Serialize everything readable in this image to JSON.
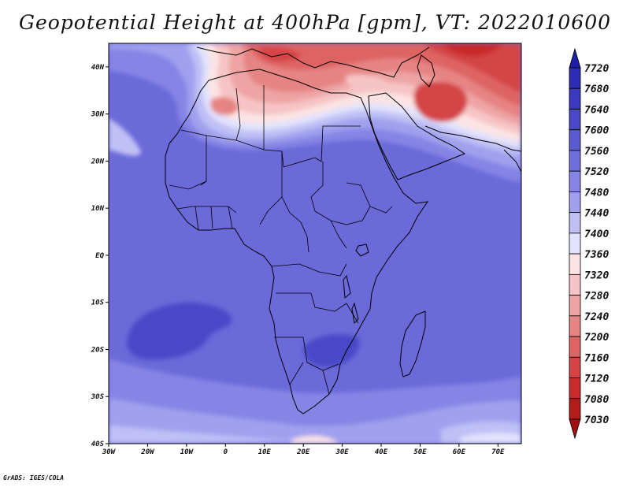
{
  "title": "Geopotential Height at 400hPa [gpm], VT: 2022010600",
  "credit": "GrADS: IGES/COLA",
  "map": {
    "variable": "Geopotential Height",
    "level": "400hPa",
    "units": "gpm",
    "valid_time": "2022010600",
    "lon_range": [
      -30,
      76
    ],
    "lat_range": [
      -40,
      45
    ],
    "lon_ticks": [
      {
        "value": -30,
        "label": "30W"
      },
      {
        "value": -20,
        "label": "20W"
      },
      {
        "value": -10,
        "label": "10W"
      },
      {
        "value": 0,
        "label": "0"
      },
      {
        "value": 10,
        "label": "10E"
      },
      {
        "value": 20,
        "label": "20E"
      },
      {
        "value": 30,
        "label": "30E"
      },
      {
        "value": 40,
        "label": "40E"
      },
      {
        "value": 50,
        "label": "50E"
      },
      {
        "value": 60,
        "label": "60E"
      },
      {
        "value": 70,
        "label": "70E"
      }
    ],
    "lat_ticks": [
      {
        "value": 40,
        "label": "40N"
      },
      {
        "value": 30,
        "label": "30N"
      },
      {
        "value": 20,
        "label": "20N"
      },
      {
        "value": 10,
        "label": "10N"
      },
      {
        "value": 0,
        "label": "EQ"
      },
      {
        "value": -10,
        "label": "10S"
      },
      {
        "value": -20,
        "label": "20S"
      },
      {
        "value": -30,
        "label": "30S"
      },
      {
        "value": -40,
        "label": "40S"
      }
    ]
  },
  "colorbar": {
    "labels": [
      "7720",
      "7680",
      "7640",
      "7600",
      "7560",
      "7520",
      "7480",
      "7440",
      "7400",
      "7360",
      "7320",
      "7280",
      "7240",
      "7200",
      "7160",
      "7120",
      "7080",
      "7030"
    ],
    "colors_top_to_bottom": [
      "#1e1ea8",
      "#2c2cb4",
      "#3a3ac0",
      "#4848c8",
      "#5a5ad2",
      "#6e6edc",
      "#8585e6",
      "#a0a0ee",
      "#c0c0f6",
      "#e2e2fc",
      "#fce4e4",
      "#f6c4c4",
      "#eea4a4",
      "#e68484",
      "#de6464",
      "#d44444",
      "#c82c2c",
      "#b41c1c",
      "#9e1010"
    ]
  },
  "colors": {
    "background_field": "#6a6ad9",
    "coastline": "#000000"
  }
}
